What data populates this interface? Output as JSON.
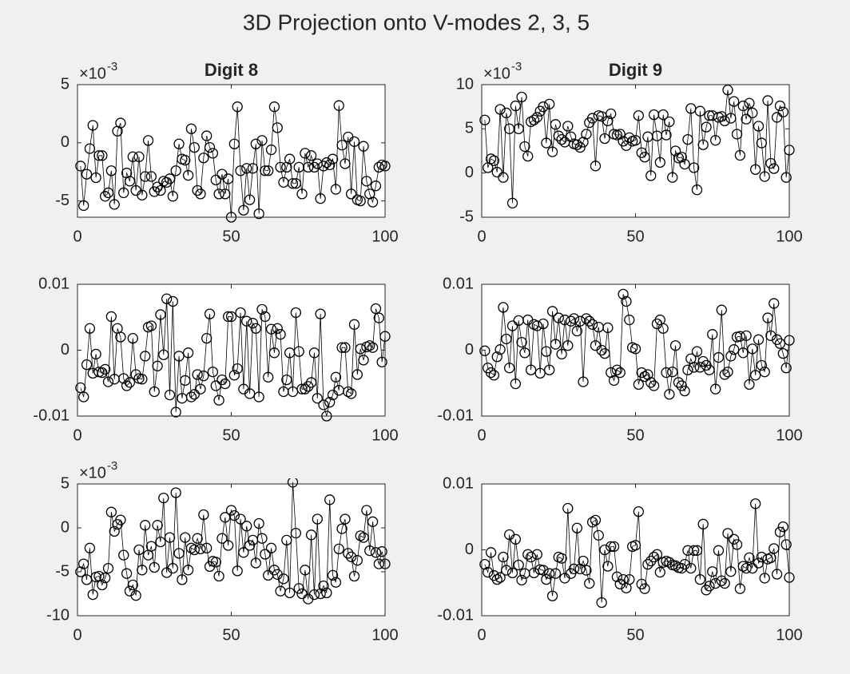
{
  "title": "3D Projection onto V-modes 2, 3, 5",
  "chart_data": [
    {
      "type": "line",
      "title": "Digit 8",
      "color": "#000000",
      "marker": "circle",
      "x": [
        1,
        2,
        3,
        4,
        5,
        6,
        7,
        8,
        9,
        10,
        11,
        12,
        13,
        14,
        15,
        16,
        17,
        18,
        19,
        20,
        21,
        22,
        23,
        24,
        25,
        26,
        27,
        28,
        29,
        30,
        31,
        32,
        33,
        34,
        35,
        36,
        37,
        38,
        39,
        40,
        41,
        42,
        43,
        44,
        45,
        46,
        47,
        48,
        49,
        50,
        51,
        52,
        53,
        54,
        55,
        56,
        57,
        58,
        59,
        60,
        61,
        62,
        63,
        64,
        65,
        66,
        67,
        68,
        69,
        70,
        71,
        72,
        73,
        74,
        75,
        76,
        77,
        78,
        79,
        80,
        81,
        82,
        83,
        84,
        85,
        86,
        87,
        88,
        89,
        90,
        91,
        92,
        93,
        94,
        95,
        96,
        97,
        98,
        99,
        100
      ],
      "values": [
        -2.0,
        -5.4,
        -2.7,
        -0.5,
        1.5,
        -3.0,
        -1.1,
        -1.1,
        -4.6,
        -4.3,
        -2.4,
        -5.3,
        1.0,
        1.7,
        -4.3,
        -2.6,
        -3.3,
        -1.2,
        -4.1,
        -1.2,
        -4.5,
        -2.9,
        0.2,
        -2.9,
        -4.2,
        -3.8,
        -4.1,
        -3.3,
        -3.4,
        -3.1,
        -4.6,
        -2.4,
        -0.1,
        -1.4,
        -1.5,
        -2.8,
        1.2,
        -0.4,
        -4.1,
        -4.4,
        -1.3,
        0.6,
        -0.4,
        -0.9,
        -3.2,
        -4.4,
        -2.7,
        -4.4,
        -3.1,
        -6.4,
        -0.1,
        3.1,
        -2.4,
        -5.8,
        -2.2,
        -4.9,
        -2.2,
        -0.1,
        -6.1,
        0.2,
        -2.4,
        -2.4,
        -0.6,
        3.1,
        1.3,
        -2.1,
        -3.4,
        -2.1,
        -1.4,
        -3.5,
        -3.5,
        -2.1,
        -4.4,
        -0.9,
        -2.1,
        -1.1,
        -2.1,
        -1.8,
        -4.8,
        -2.0,
        -1.7,
        -1.9,
        -1.4,
        -4.0,
        3.2,
        -0.2,
        -1.8,
        0.5,
        -4.4,
        0.1,
        -4.9,
        -5.0,
        -0.3,
        -3.3,
        -4.4,
        -5.1,
        -3.7,
        -2.1,
        -1.9,
        -2.0
      ],
      "xlim": [
        0,
        100
      ],
      "xticks": [
        0,
        50,
        100
      ],
      "ylim": [
        -6.4,
        5
      ],
      "yticks": [
        -5,
        0,
        5
      ],
      "y_multiplier": "×10",
      "y_exponent": "-3"
    },
    {
      "type": "line",
      "title": "Digit 9",
      "color": "#000000",
      "marker": "circle",
      "x": [
        1,
        2,
        3,
        4,
        5,
        6,
        7,
        8,
        9,
        10,
        11,
        12,
        13,
        14,
        15,
        16,
        17,
        18,
        19,
        20,
        21,
        22,
        23,
        24,
        25,
        26,
        27,
        28,
        29,
        30,
        31,
        32,
        33,
        34,
        35,
        36,
        37,
        38,
        39,
        40,
        41,
        42,
        43,
        44,
        45,
        46,
        47,
        48,
        49,
        50,
        51,
        52,
        53,
        54,
        55,
        56,
        57,
        58,
        59,
        60,
        61,
        62,
        63,
        64,
        65,
        66,
        67,
        68,
        69,
        70,
        71,
        72,
        73,
        74,
        75,
        76,
        77,
        78,
        79,
        80,
        81,
        82,
        83,
        84,
        85,
        86,
        87,
        88,
        89,
        90,
        91,
        92,
        93,
        94,
        95,
        96,
        97,
        98,
        99,
        100
      ],
      "values": [
        6.0,
        0.6,
        1.6,
        1.4,
        0.1,
        7.2,
        -0.5,
        6.8,
        5.0,
        -3.4,
        7.6,
        5.0,
        8.6,
        3.0,
        1.9,
        5.8,
        6.0,
        6.3,
        7.0,
        7.5,
        3.4,
        7.8,
        2.4,
        5.5,
        4.2,
        3.8,
        3.5,
        5.3,
        4.1,
        3.3,
        3.2,
        2.9,
        3.5,
        4.4,
        5.7,
        6.2,
        0.8,
        6.5,
        6.4,
        3.9,
        5.9,
        6.7,
        4.4,
        4.3,
        4.4,
        3.6,
        3.1,
        4.0,
        3.6,
        3.7,
        6.5,
        2.3,
        1.8,
        4.1,
        -0.3,
        6.6,
        4.2,
        1.2,
        6.6,
        4.3,
        5.8,
        -0.5,
        2.5,
        1.7,
        1.8,
        1.0,
        3.8,
        7.3,
        0.6,
        -1.9,
        7.0,
        3.2,
        5.2,
        6.5,
        6.5,
        3.7,
        6.3,
        6.4,
        5.9,
        9.4,
        6.2,
        8.1,
        4.4,
        2.0,
        7.6,
        6.1,
        7.9,
        6.8,
        0.4,
        5.3,
        3.4,
        -0.4,
        8.2,
        1.1,
        0.5,
        6.3,
        7.6,
        6.9,
        -0.5,
        2.6
      ],
      "xlim": [
        0,
        100
      ],
      "xticks": [
        0,
        50,
        100
      ],
      "ylim": [
        -5,
        10
      ],
      "yticks": [
        -5,
        0,
        5,
        10
      ],
      "y_multiplier": "×10",
      "y_exponent": "-3"
    },
    {
      "type": "line",
      "color": "#000000",
      "marker": "circle",
      "x": [
        1,
        2,
        3,
        4,
        5,
        6,
        7,
        8,
        9,
        10,
        11,
        12,
        13,
        14,
        15,
        16,
        17,
        18,
        19,
        20,
        21,
        22,
        23,
        24,
        25,
        26,
        27,
        28,
        29,
        30,
        31,
        32,
        33,
        34,
        35,
        36,
        37,
        38,
        39,
        40,
        41,
        42,
        43,
        44,
        45,
        46,
        47,
        48,
        49,
        50,
        51,
        52,
        53,
        54,
        55,
        56,
        57,
        58,
        59,
        60,
        61,
        62,
        63,
        64,
        65,
        66,
        67,
        68,
        69,
        70,
        71,
        72,
        73,
        74,
        75,
        76,
        77,
        78,
        79,
        80,
        81,
        82,
        83,
        84,
        85,
        86,
        87,
        88,
        89,
        90,
        91,
        92,
        93,
        94,
        95,
        96,
        97,
        98,
        99,
        100
      ],
      "values": [
        -0.0057,
        -0.0071,
        -0.0022,
        0.0033,
        -0.0035,
        -0.0006,
        -0.0033,
        -0.0034,
        -0.0029,
        -0.0048,
        0.0051,
        -0.0044,
        0.0033,
        0.002,
        -0.0043,
        -0.0054,
        -0.0049,
        0.0018,
        -0.0037,
        -0.0043,
        -0.0044,
        -0.0009,
        0.0035,
        0.0037,
        -0.0063,
        -0.0024,
        0.0054,
        -0.0007,
        0.0078,
        -0.0068,
        0.0074,
        -0.0094,
        -0.0009,
        -0.0073,
        -0.0046,
        -0.0004,
        -0.0071,
        -0.0067,
        -0.0037,
        -0.0059,
        -0.0039,
        0.0018,
        0.0055,
        -0.0033,
        -0.0054,
        -0.0076,
        -0.0045,
        -0.0051,
        0.0051,
        0.0051,
        -0.0038,
        -0.0028,
        0.0057,
        -0.0059,
        0.0044,
        -0.0066,
        0.0041,
        0.0033,
        -0.0071,
        0.0062,
        0.0051,
        -0.0041,
        0.0032,
        -0.0004,
        0.0033,
        0.0024,
        -0.0063,
        -0.0045,
        -0.0004,
        -0.0063,
        0.0057,
        -0.0002,
        -0.0059,
        -0.0059,
        -0.0055,
        -0.0049,
        -0.0004,
        -0.0073,
        0.0055,
        -0.0083,
        -0.01,
        -0.0079,
        -0.0068,
        -0.0041,
        -0.0061,
        0.0004,
        0.0004,
        -0.0063,
        -0.0066,
        0.0039,
        -0.0037,
        0.0002,
        -0.0015,
        0.0005,
        0.0007,
        0.0004,
        0.0063,
        0.0049,
        -0.0018,
        0.0021
      ],
      "xlim": [
        0,
        100
      ],
      "xticks": [
        0,
        50,
        100
      ],
      "ylim": [
        -0.01,
        0.01
      ],
      "yticks": [
        -0.01,
        0,
        0.01
      ]
    },
    {
      "type": "line",
      "color": "#000000",
      "marker": "circle",
      "x": [
        1,
        2,
        3,
        4,
        5,
        6,
        7,
        8,
        9,
        10,
        11,
        12,
        13,
        14,
        15,
        16,
        17,
        18,
        19,
        20,
        21,
        22,
        23,
        24,
        25,
        26,
        27,
        28,
        29,
        30,
        31,
        32,
        33,
        34,
        35,
        36,
        37,
        38,
        39,
        40,
        41,
        42,
        43,
        44,
        45,
        46,
        47,
        48,
        49,
        50,
        51,
        52,
        53,
        54,
        55,
        56,
        57,
        58,
        59,
        60,
        61,
        62,
        63,
        64,
        65,
        66,
        67,
        68,
        69,
        70,
        71,
        72,
        73,
        74,
        75,
        76,
        77,
        78,
        79,
        80,
        81,
        82,
        83,
        84,
        85,
        86,
        87,
        88,
        89,
        90,
        91,
        92,
        93,
        94,
        95,
        96,
        97,
        98,
        99,
        100
      ],
      "values": [
        -0.0001,
        -0.0027,
        -0.0034,
        -0.0038,
        -0.001,
        0.0001,
        0.0065,
        0.0017,
        -0.0027,
        0.0037,
        -0.0051,
        0.0045,
        0.0012,
        -0.0004,
        0.0046,
        -0.003,
        0.0039,
        0.0037,
        -0.0035,
        0.004,
        -0.0002,
        -0.003,
        0.0059,
        0.0009,
        0.0049,
        -0.0006,
        0.0046,
        0.0007,
        0.0044,
        0.0048,
        0.0029,
        0.0044,
        -0.0048,
        0.0048,
        0.0044,
        0.0039,
        0.0007,
        0.0035,
        0,
        -0.0005,
        0.0034,
        -0.0034,
        -0.0046,
        -0.003,
        -0.0034,
        0.0085,
        0.0074,
        0.0046,
        0.0004,
        0.0002,
        -0.0052,
        -0.0034,
        -0.004,
        -0.0037,
        -0.0049,
        -0.0054,
        0.004,
        0.0046,
        0.0033,
        -0.0034,
        -0.0067,
        -0.0033,
        0.0007,
        -0.0049,
        -0.0054,
        -0.0062,
        -0.003,
        -0.0013,
        -0.0026,
        -0.0002,
        -0.0026,
        -0.0017,
        -0.0023,
        -0.003,
        0.0024,
        -0.0059,
        -0.0011,
        0.0061,
        -0.0037,
        -0.0033,
        -0.0009,
        0.0001,
        0.002,
        0.0021,
        -0.0004,
        0.0022,
        -0.0052,
        0.0002,
        -0.0038,
        0.0016,
        -0.0023,
        -0.0033,
        0.0049,
        0.0022,
        0.0071,
        0.0016,
        0.001,
        -0.0005,
        -0.0027,
        0.0015
      ],
      "xlim": [
        0,
        100
      ],
      "xticks": [
        0,
        50,
        100
      ],
      "ylim": [
        -0.01,
        0.01
      ],
      "yticks": [
        -0.01,
        0,
        0.01
      ]
    },
    {
      "type": "line",
      "color": "#000000",
      "marker": "circle",
      "x": [
        1,
        2,
        3,
        4,
        5,
        6,
        7,
        8,
        9,
        10,
        11,
        12,
        13,
        14,
        15,
        16,
        17,
        18,
        19,
        20,
        21,
        22,
        23,
        24,
        25,
        26,
        27,
        28,
        29,
        30,
        31,
        32,
        33,
        34,
        35,
        36,
        37,
        38,
        39,
        40,
        41,
        42,
        43,
        44,
        45,
        46,
        47,
        48,
        49,
        50,
        51,
        52,
        53,
        54,
        55,
        56,
        57,
        58,
        59,
        60,
        61,
        62,
        63,
        64,
        65,
        66,
        67,
        68,
        69,
        70,
        71,
        72,
        73,
        74,
        75,
        76,
        77,
        78,
        79,
        80,
        81,
        82,
        83,
        84,
        85,
        86,
        87,
        88,
        89,
        90,
        91,
        92,
        93,
        94,
        95,
        96,
        97,
        98,
        99,
        100
      ],
      "values": [
        -5.0,
        -4.1,
        -5.9,
        -2.3,
        -7.6,
        -5.6,
        -5.5,
        -6.5,
        -5.7,
        -4.6,
        1.8,
        -0.4,
        0.4,
        0.9,
        -3.1,
        -5.2,
        -7.2,
        -6.5,
        -7.7,
        -2.5,
        -4.8,
        0.3,
        -3.1,
        -2.1,
        -4.5,
        0.3,
        -1.6,
        3.4,
        -5.1,
        -1.1,
        -4.6,
        4.0,
        -2.9,
        -5.9,
        -1.1,
        -4.8,
        -2.3,
        -2.5,
        -1.2,
        -2.4,
        1.5,
        -2.3,
        -4.4,
        -3.8,
        -3.9,
        -5.5,
        -1.2,
        1.2,
        -2.0,
        2.0,
        1.4,
        -4.9,
        1.0,
        -2.8,
        0.2,
        -2.0,
        -1.4,
        -4.0,
        0.5,
        -1.2,
        -3.0,
        -5.4,
        -2.3,
        -4.8,
        -5.3,
        -7.2,
        -5.8,
        -1.4,
        -7.4,
        5.2,
        -0.6,
        -6.9,
        -7.5,
        -4.8,
        -8.1,
        -0.8,
        -7.6,
        1.0,
        -7.5,
        -6.6,
        -7.4,
        3.2,
        -5.4,
        -6.2,
        -2.4,
        -0.1,
        1.0,
        -2.9,
        -3.3,
        -5.5,
        -3.7,
        -0.9,
        -1.1,
        2.0,
        -2.6,
        0.7,
        -2.8,
        -4.1,
        -2.7,
        -4.1
      ],
      "xlim": [
        0,
        100
      ],
      "xticks": [
        0,
        50,
        100
      ],
      "ylim": [
        -10,
        5
      ],
      "yticks": [
        -10,
        -5,
        0,
        5
      ],
      "y_multiplier": "×10",
      "y_exponent": "-3"
    },
    {
      "type": "line",
      "color": "#000000",
      "marker": "circle",
      "x": [
        1,
        2,
        3,
        4,
        5,
        6,
        7,
        8,
        9,
        10,
        11,
        12,
        13,
        14,
        15,
        16,
        17,
        18,
        19,
        20,
        21,
        22,
        23,
        24,
        25,
        26,
        27,
        28,
        29,
        30,
        31,
        32,
        33,
        34,
        35,
        36,
        37,
        38,
        39,
        40,
        41,
        42,
        43,
        44,
        45,
        46,
        47,
        48,
        49,
        50,
        51,
        52,
        53,
        54,
        55,
        56,
        57,
        58,
        59,
        60,
        61,
        62,
        63,
        64,
        65,
        66,
        67,
        68,
        69,
        70,
        71,
        72,
        73,
        74,
        75,
        76,
        77,
        78,
        79,
        80,
        81,
        82,
        83,
        84,
        85,
        86,
        87,
        88,
        89,
        90,
        91,
        92,
        93,
        94,
        95,
        96,
        97,
        98,
        99,
        100
      ],
      "values": [
        -0.0022,
        -0.0034,
        -0.0004,
        -0.0039,
        -0.0045,
        -0.0042,
        -0.0011,
        -0.0031,
        0.0023,
        -0.0035,
        0.0016,
        -0.0023,
        -0.0046,
        -0.0036,
        -0.0007,
        -0.0011,
        -0.0035,
        -0.0007,
        -0.003,
        -0.0031,
        -0.0045,
        -0.0036,
        -0.007,
        -0.0036,
        -0.0011,
        -0.0013,
        -0.0043,
        0.0063,
        -0.0036,
        -0.0029,
        0.0033,
        -0.0029,
        -0.0017,
        -0.0031,
        -0.0051,
        0.0042,
        0.0045,
        0.0022,
        -0.008,
        0,
        -0.0025,
        0.0005,
        0.0005,
        -0.0041,
        -0.0052,
        -0.0045,
        -0.0058,
        -0.0045,
        0.0005,
        0.0007,
        0.0058,
        -0.0052,
        -0.0059,
        -0.0022,
        -0.0017,
        -0.0011,
        -0.0007,
        -0.0034,
        -0.0019,
        -0.0017,
        -0.0019,
        -0.0023,
        -0.0024,
        -0.0027,
        -0.0028,
        -0.0022,
        -0.0001,
        -0.0028,
        -0.0001,
        -0.0001,
        -0.0045,
        0.0039,
        -0.0061,
        -0.0055,
        -0.0033,
        -0.0051,
        -0.0001,
        -0.0047,
        -0.0051,
        0.0025,
        -0.0033,
        0.0016,
        0.0008,
        -0.0059,
        -0.0025,
        -0.0028,
        -0.0012,
        -0.0028,
        0.007,
        -0.002,
        -0.0011,
        -0.0043,
        -0.0014,
        -0.0012,
        0.0002,
        -0.0037,
        0.0027,
        0.0035,
        0.0008,
        -0.0042
      ],
      "xlim": [
        0,
        100
      ],
      "xticks": [
        0,
        50,
        100
      ],
      "ylim": [
        -0.01,
        0.01
      ],
      "yticks": [
        -0.01,
        0,
        0.01
      ]
    }
  ]
}
